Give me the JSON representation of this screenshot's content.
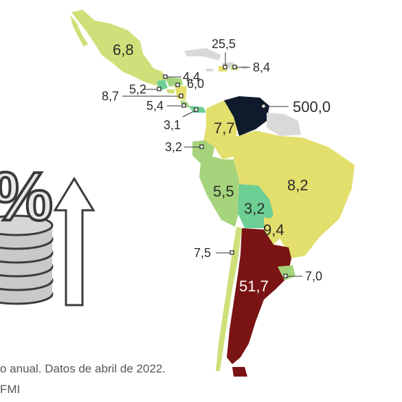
{
  "colors": {
    "very_high": "#0f1b2d",
    "high": "#7a1414",
    "mid_high": "#e3df6c",
    "mid": "#cfe07a",
    "low": "#a6d47c",
    "lowest": "#6dcf94",
    "no_data": "#d9d9d9"
  },
  "map": {
    "labels": {
      "mexico": "6,8",
      "cuba": "25,5",
      "dominican_republic": "8,4",
      "honduras": "4,4",
      "guatemala": "5,2",
      "nicaragua": "6,0",
      "el_salvador": "8,7",
      "costa_rica": "5,4",
      "panama": "3,1",
      "venezuela": "500,0",
      "colombia": "7,7",
      "ecuador": "3,2",
      "brazil": "8,2",
      "peru": "5,5",
      "bolivia": "3,2",
      "paraguay": "9,4",
      "chile": "7,5",
      "argentina": "51,7",
      "uruguay": "7,0"
    }
  },
  "footer": {
    "line1": "o anual. Datos de abril de 2022.",
    "line2": "FMI"
  }
}
